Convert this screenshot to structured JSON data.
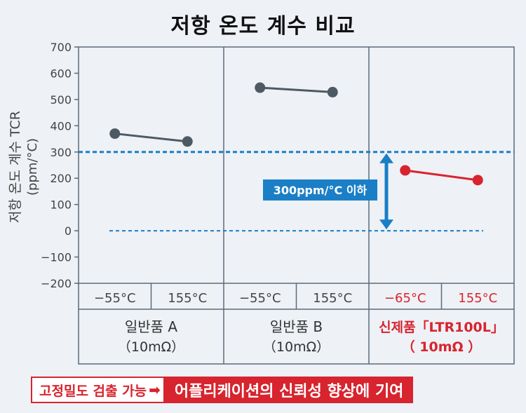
{
  "chart_data": {
    "type": "line",
    "title": "저항 온도 계수 비교",
    "ylabel_main": "저항 온도 계수 TCR",
    "ylabel_unit": "(ppm/°C)",
    "ylim": [
      -200,
      700
    ],
    "yticks": [
      700,
      600,
      500,
      400,
      300,
      200,
      100,
      0,
      -100,
      -200
    ],
    "ytick_labels": [
      "700",
      "600",
      "500",
      "400",
      "300",
      "200",
      "100",
      "0",
      "−100",
      "−200"
    ],
    "reference_lines": [
      {
        "value": 300,
        "style": "dashed"
      },
      {
        "value": 0,
        "style": "dashed"
      }
    ],
    "annotation": {
      "text": "300ppm/°C 이하",
      "from": 0,
      "to": 300
    },
    "groups": [
      {
        "name_line1": "일반품 A",
        "name_line2": "（10mΩ）",
        "color": "#4d5a63",
        "highlight": false,
        "x_labels": [
          "−55°C",
          "155°C"
        ],
        "values": [
          370,
          340
        ]
      },
      {
        "name_line1": "일반품 B",
        "name_line2": "（10mΩ）",
        "color": "#4d5a63",
        "highlight": false,
        "x_labels": [
          "−55°C",
          "155°C"
        ],
        "values": [
          545,
          528
        ]
      },
      {
        "name_line1": "신제품「LTR100L」",
        "name_line2": "（ 10mΩ ）",
        "color": "#d7242e",
        "highlight": true,
        "x_labels": [
          "−65°C",
          "155°C"
        ],
        "values": [
          230,
          193
        ]
      }
    ]
  },
  "footer": {
    "left_text": "고정밀도 검출 가능",
    "right_text": "어플리케이션의 신뢰성 향상에 기여"
  },
  "colors": {
    "accent_red": "#d7242e",
    "reference_blue": "#1a7fc6",
    "frame": "#5c6b78",
    "series_gray": "#4d5a63",
    "background": "#eef1f6"
  }
}
